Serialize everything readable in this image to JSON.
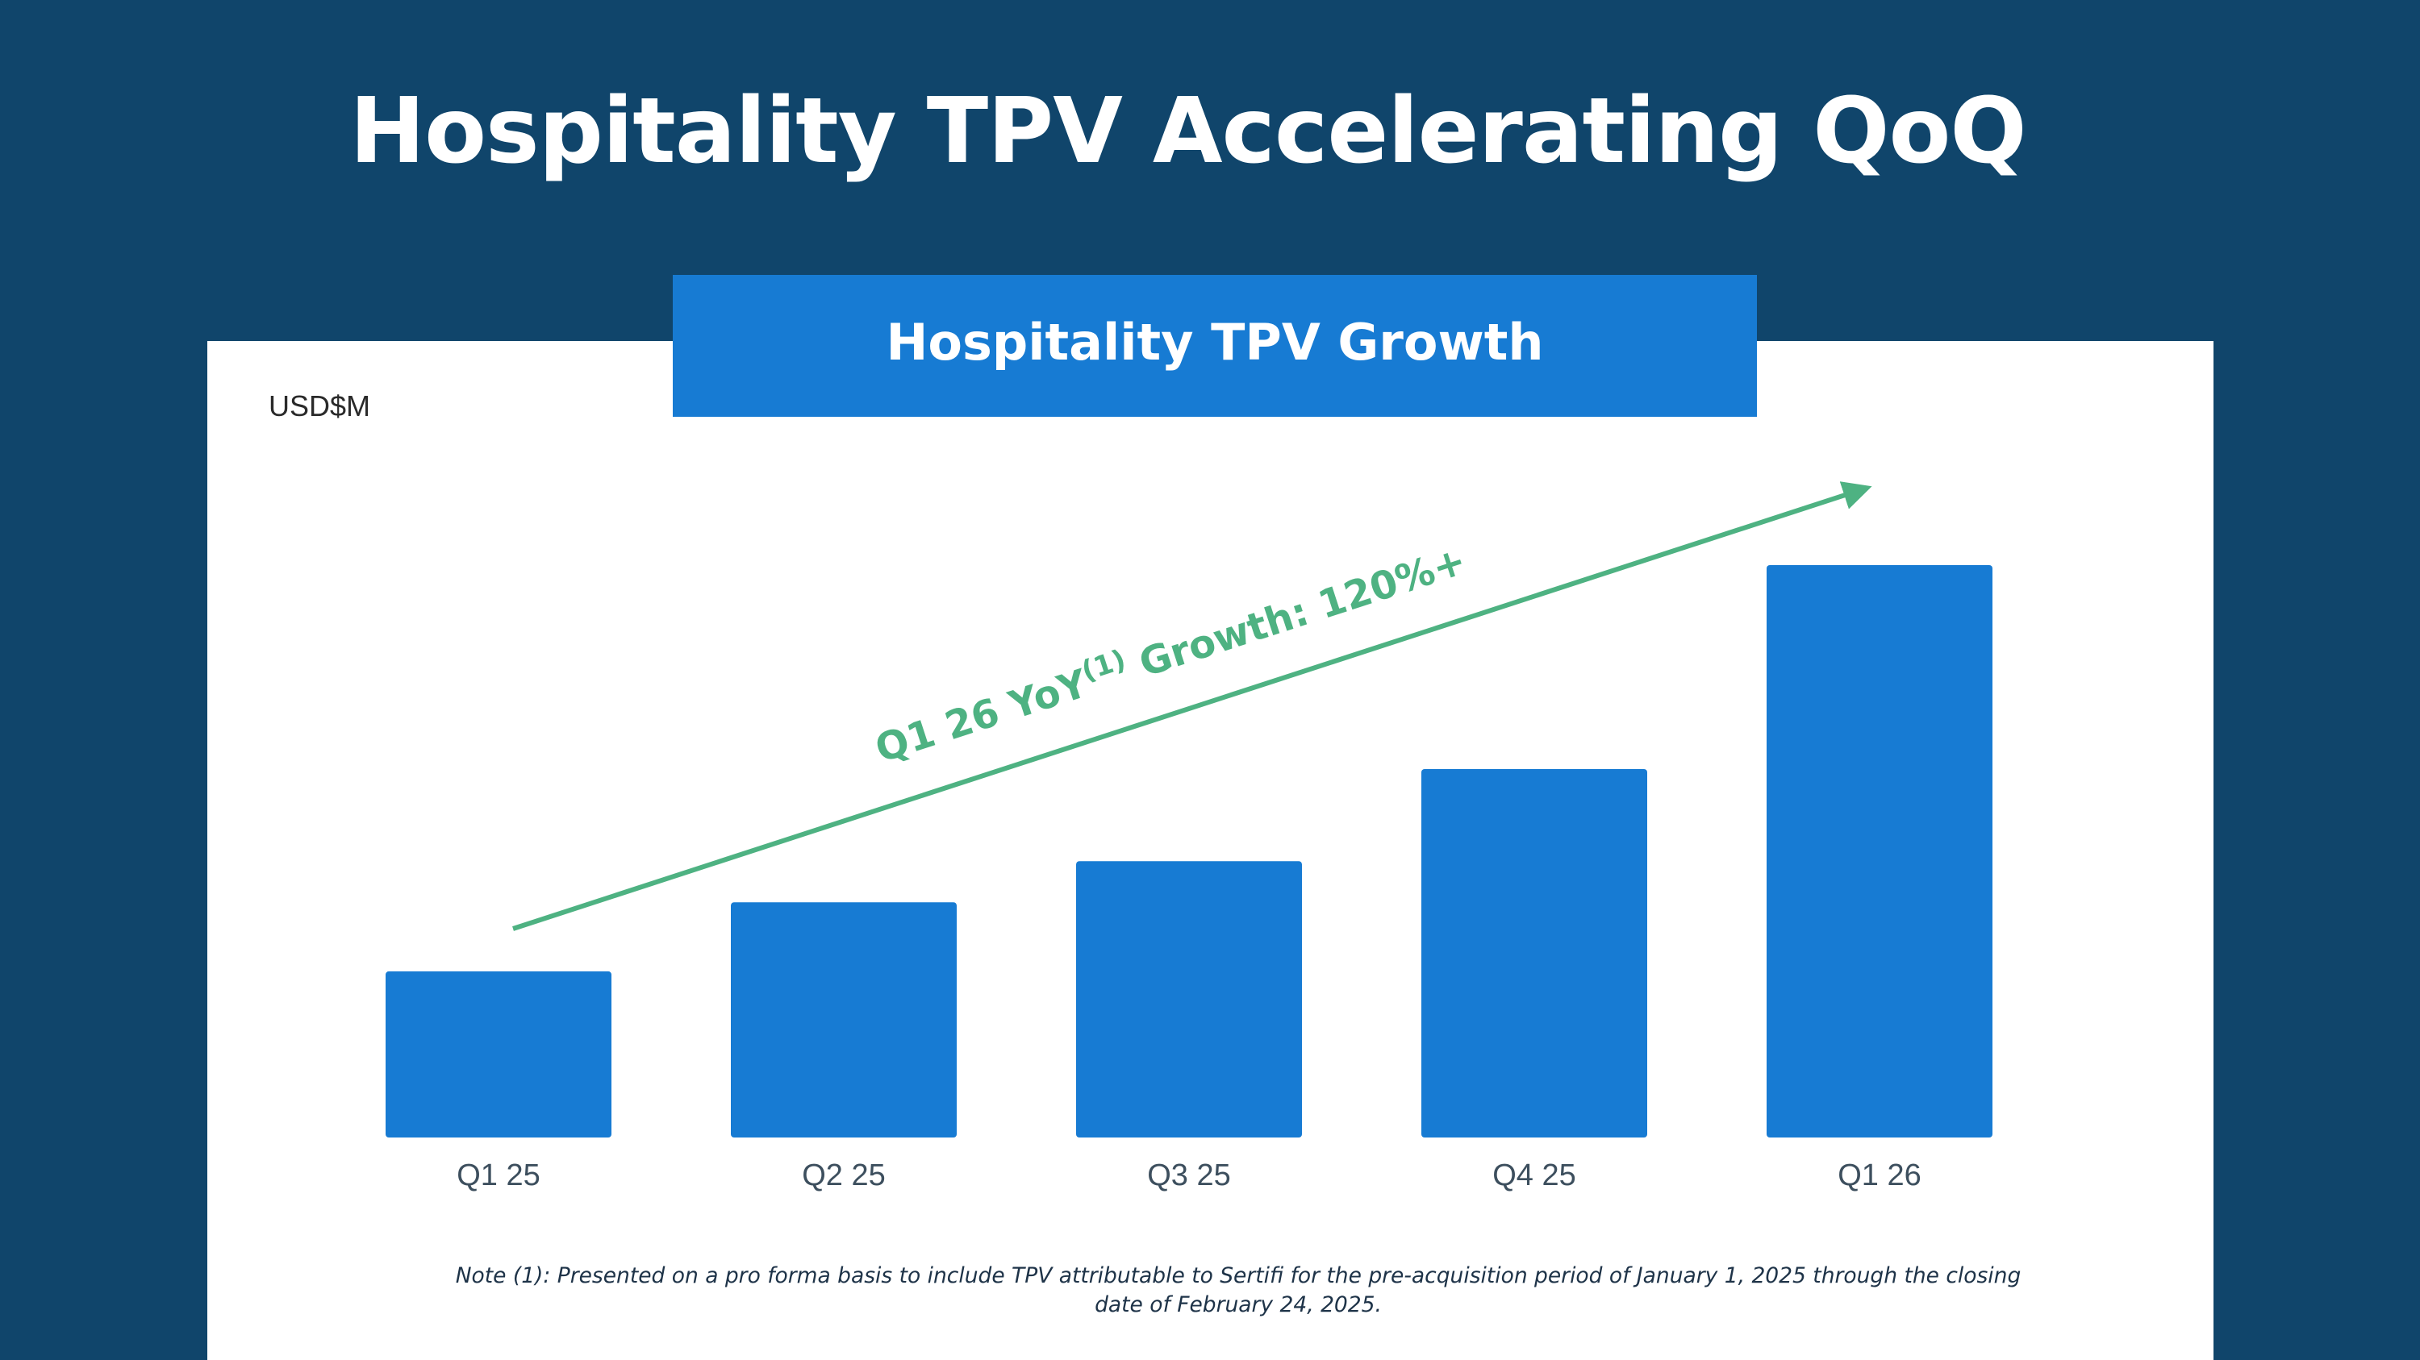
{
  "slide_title": "Hospitality TPV Accelerating QoQ",
  "footnote": "Note (1): Presented on a pro forma basis to include TPV attributable to Sertifi for the pre-acquisition period of January 1, 2025 through the closing date of February 24, 2025.",
  "colors": {
    "background": "#10456b",
    "bar": "#177bd3",
    "header_band": "#177bd3",
    "growth_arrow": "#4eb282",
    "tick_label": "#3d4f5e"
  },
  "chart_data": {
    "type": "bar",
    "title": "Hospitality TPV Growth",
    "ylabel": "USD$M",
    "categories": [
      "Q1 25",
      "Q2 25",
      "Q3 25",
      "Q4 25",
      "Q1 26"
    ],
    "values": [
      10.1,
      14.3,
      16.8,
      22.4,
      34.8
    ],
    "ylim": [
      0,
      34.8
    ],
    "axis_values_shown": false,
    "grid": false,
    "legend": "none",
    "annotation": {
      "prefix": "Q1 26 YoY",
      "superscript": "(1)",
      "suffix": " Growth: 120%+",
      "arrow_direction": "up-right"
    }
  }
}
